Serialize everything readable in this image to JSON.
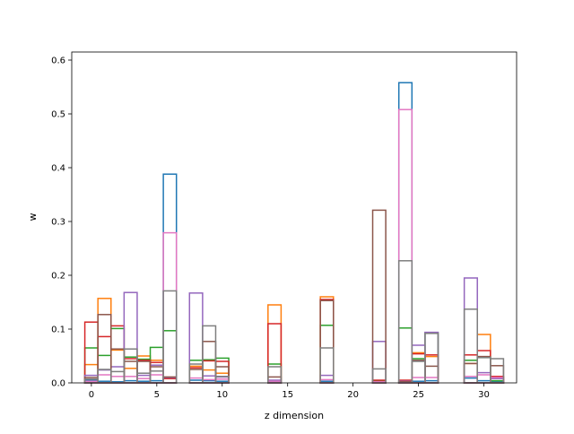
{
  "chart_data": {
    "type": "bar",
    "style": "overlapping step histograms (outlined bars, no fill)",
    "title": "",
    "xlabel": "z dimension",
    "ylabel": "w",
    "xlim": [
      -1.5,
      32.5
    ],
    "ylim": [
      0,
      0.615
    ],
    "x": [
      0,
      1,
      2,
      3,
      4,
      5,
      6,
      7,
      8,
      9,
      10,
      11,
      12,
      13,
      14,
      15,
      16,
      17,
      18,
      19,
      20,
      21,
      22,
      23,
      24,
      25,
      26,
      27,
      28,
      29,
      30,
      31
    ],
    "xticks": [
      0,
      5,
      10,
      15,
      20,
      25,
      30
    ],
    "yticks": [
      0.0,
      0.1,
      0.2,
      0.3,
      0.4,
      0.5,
      0.6
    ],
    "xtick_labels": [
      "0",
      "5",
      "10",
      "15",
      "20",
      "25",
      "30"
    ],
    "ytick_labels": [
      "0.0",
      "0.1",
      "0.2",
      "0.3",
      "0.4",
      "0.5",
      "0.6"
    ],
    "grid": false,
    "legend": "none",
    "series": [
      {
        "color": "#1f77b4",
        "values": [
          0.005,
          0.003,
          0.002,
          0.004,
          0.003,
          0.004,
          0.388,
          0,
          0.005,
          0.004,
          0.003,
          0,
          0,
          0,
          0.002,
          0,
          0,
          0,
          0.003,
          0,
          0,
          0,
          0.002,
          0,
          0.558,
          0.003,
          0.004,
          0,
          0,
          0.009,
          0.004,
          0.003
        ]
      },
      {
        "color": "#ff7f0e",
        "values": [
          0.034,
          0.157,
          0.061,
          0.027,
          0.05,
          0.042,
          0.008,
          0,
          0.031,
          0.024,
          0.018,
          0,
          0,
          0,
          0.145,
          0,
          0,
          0,
          0.16,
          0,
          0,
          0,
          0.003,
          0,
          0.004,
          0.056,
          0.049,
          0,
          0,
          0.036,
          0.09,
          0.01
        ]
      },
      {
        "color": "#2ca02c",
        "values": [
          0.065,
          0.051,
          0.101,
          0.048,
          0.044,
          0.066,
          0.097,
          0,
          0.042,
          0.043,
          0.046,
          0,
          0,
          0,
          0.035,
          0,
          0,
          0,
          0.107,
          0,
          0,
          0,
          0.004,
          0,
          0.102,
          0.045,
          0.093,
          0,
          0,
          0.042,
          0.047,
          0.004
        ]
      },
      {
        "color": "#d62728",
        "values": [
          0.113,
          0.086,
          0.106,
          0.045,
          0.042,
          0.038,
          0.008,
          0,
          0.028,
          0.041,
          0.04,
          0,
          0,
          0,
          0.11,
          0,
          0,
          0,
          0.155,
          0,
          0,
          0,
          0.005,
          0,
          0.005,
          0.054,
          0.052,
          0,
          0,
          0.052,
          0.06,
          0.012
        ]
      },
      {
        "color": "#9467bd",
        "values": [
          0.014,
          0.024,
          0.03,
          0.168,
          0.014,
          0.033,
          0.01,
          0,
          0.167,
          0.013,
          0.011,
          0,
          0,
          0,
          0.005,
          0,
          0,
          0,
          0.014,
          0,
          0,
          0,
          0.077,
          0,
          0.003,
          0.07,
          0.094,
          0,
          0,
          0.195,
          0.019,
          0.008
        ]
      },
      {
        "color": "#8c564b",
        "values": [
          0.01,
          0.127,
          0.063,
          0.04,
          0.04,
          0.03,
          0.011,
          0,
          0.025,
          0.077,
          0.03,
          0,
          0,
          0,
          0.011,
          0,
          0,
          0,
          0.153,
          0,
          0,
          0,
          0.321,
          0,
          0.002,
          0.042,
          0.031,
          0,
          0,
          0.036,
          0.049,
          0.032
        ]
      },
      {
        "color": "#e377c2",
        "values": [
          0.003,
          0.015,
          0.012,
          0.012,
          0.008,
          0.015,
          0.279,
          0,
          0.009,
          0.006,
          0.007,
          0,
          0,
          0,
          0.003,
          0,
          0,
          0,
          0.006,
          0,
          0,
          0,
          0.002,
          0,
          0.508,
          0.01,
          0.01,
          0,
          0,
          0.012,
          0.015,
          0.01
        ]
      },
      {
        "color": "#7f7f7f",
        "values": [
          0.007,
          0.025,
          0.021,
          0.063,
          0.018,
          0.022,
          0.171,
          0,
          0.035,
          0.106,
          0.012,
          0,
          0,
          0,
          0.03,
          0,
          0,
          0,
          0.065,
          0,
          0,
          0,
          0.026,
          0,
          0.227,
          0.04,
          0.092,
          0,
          0,
          0.137,
          0.047,
          0.045
        ]
      }
    ]
  }
}
